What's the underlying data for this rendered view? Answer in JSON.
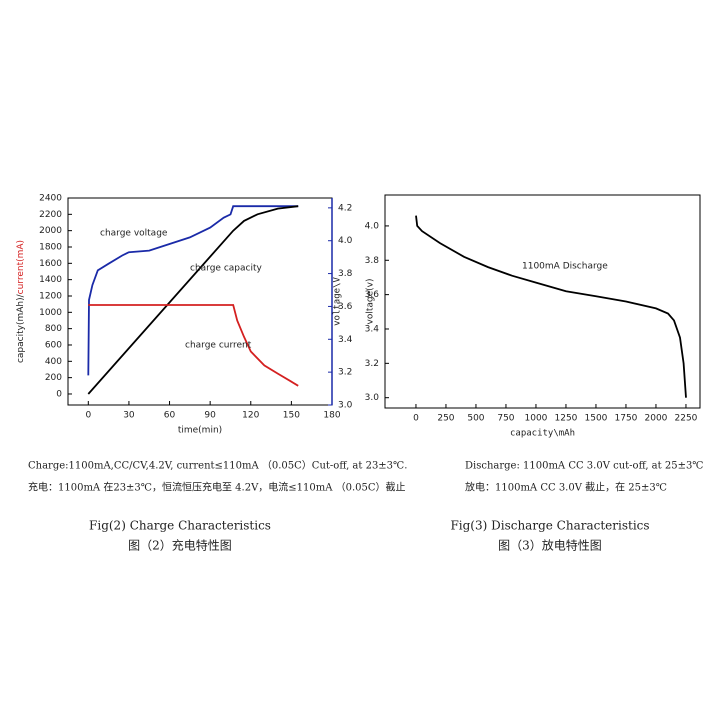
{
  "chart_data": [
    {
      "type": "line",
      "xlabel": "time(min)",
      "ylabel": [
        "capacity(mAh)/",
        "current(mA)"
      ],
      "y2label": "voltage(v)",
      "xlim": [
        -15,
        180
      ],
      "xticks": [
        0,
        30,
        60,
        90,
        120,
        150,
        180
      ],
      "ylim": [
        -135,
        2400
      ],
      "yticks": [
        0,
        200,
        400,
        600,
        800,
        1000,
        1200,
        1400,
        1600,
        1800,
        2000,
        2200,
        2400
      ],
      "y2lim": [
        3.0,
        4.26
      ],
      "y2ticks": [
        {
          "value": 3.0,
          "label": "3.0"
        },
        3.2,
        3.4,
        3.6,
        3.8,
        {
          "value": 4.0,
          "label": "4.0"
        },
        4.2
      ],
      "grid": false,
      "series": [
        {
          "name": "charge voltage",
          "color": "#1a2aa8",
          "axis": "y2",
          "x": [
            0,
            0.5,
            3,
            7,
            15,
            25,
            30,
            45,
            60,
            75,
            90,
            100,
            105,
            107,
            110,
            155
          ],
          "values": [
            3.18,
            3.64,
            3.73,
            3.82,
            3.86,
            3.91,
            3.93,
            3.94,
            3.98,
            4.02,
            4.08,
            4.14,
            4.16,
            4.21,
            4.21,
            4.21
          ]
        },
        {
          "name": "charge capacity",
          "color": "#000000",
          "x": [
            0,
            107,
            115,
            125,
            140,
            155
          ],
          "values": [
            0,
            2000,
            2120,
            2200,
            2270,
            2300
          ]
        },
        {
          "name": "charge current",
          "color": "#d42020",
          "x": [
            0,
            107,
            110,
            115,
            120,
            130,
            140,
            150,
            155
          ],
          "values": [
            1090,
            1090,
            900,
            700,
            520,
            350,
            250,
            150,
            100
          ]
        }
      ],
      "caption": "Charge:1100mA,CC/CV,4.2V, current≤110mA （0.05C）Cut-off, at 23±3℃.",
      "caption_zh": "充电：1100mA 在23±3℃，恒流恒压充电至 4.2V，电流≤110mA （0.05C）截止",
      "figure_title": "Fig(2) Charge Characteristics",
      "figure_title_zh": "图（2）充电特性图"
    },
    {
      "type": "line",
      "xlabel": "capacity\\mAh",
      "ylabel": "voltage\\V",
      "annotation": "1100mA Discharge",
      "xlim": [
        -258,
        2367
      ],
      "xticks": [
        0,
        250,
        500,
        750,
        1000,
        1250,
        1500,
        1750,
        2000,
        2250
      ],
      "ylim": [
        2.94,
        4.18
      ],
      "yticks": [
        {
          "value": 3.0,
          "label": "3.0"
        },
        3.2,
        3.4,
        3.6,
        3.8,
        {
          "value": 4.0,
          "label": "4.0"
        }
      ],
      "grid": false,
      "series": [
        {
          "name": "discharge voltage",
          "color": "#000000",
          "x": [
            0,
            10,
            50,
            200,
            400,
            600,
            800,
            1000,
            1250,
            1500,
            1750,
            2000,
            2100,
            2150,
            2200,
            2230,
            2250
          ],
          "values": [
            4.06,
            4.0,
            3.97,
            3.9,
            3.82,
            3.76,
            3.71,
            3.67,
            3.62,
            3.59,
            3.56,
            3.52,
            3.49,
            3.45,
            3.35,
            3.2,
            3.0
          ]
        }
      ],
      "caption": "Discharge: 1100mA CC 3.0V cut-off, at 25±3℃",
      "caption_zh": "放电：1100mA CC 3.0V 截止，在 25±3℃",
      "figure_title": "Fig(3) Discharge Characteristics",
      "figure_title_zh": "图（3）放电特性图"
    }
  ]
}
